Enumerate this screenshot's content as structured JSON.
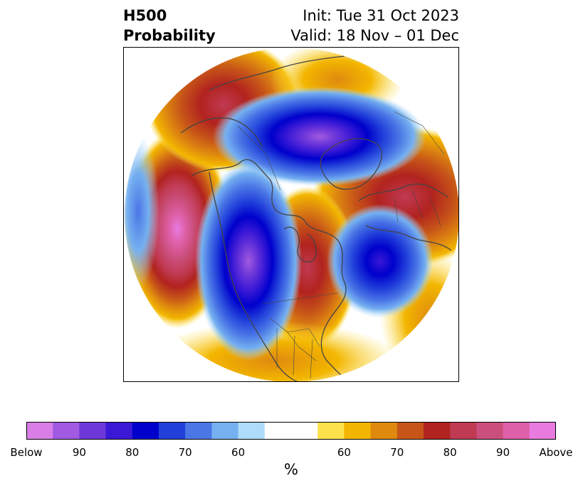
{
  "title": {
    "left_line1": "H500",
    "left_line2": "Probability",
    "init": "Init: Tue 31 Oct 2023",
    "valid": "Valid: 18 Nov – 01 Dec"
  },
  "map": {
    "projection": "north-polar-stereographic",
    "features": [
      "coastlines",
      "country-borders",
      "us-state-borders"
    ],
    "anomalies": [
      {
        "region": "Gulf of Alaska / NE Pacific",
        "category": "Above",
        "peak_percent": 95
      },
      {
        "region": "Western Canada / Alaska interior",
        "category": "Below",
        "peak_percent": 90
      },
      {
        "region": "Eastern Canada / Great Lakes",
        "category": "Above",
        "peak_percent": 85
      },
      {
        "region": "North Atlantic",
        "category": "Below",
        "peak_percent": 80
      },
      {
        "region": "Arctic Ocean / Siberia",
        "category": "Below",
        "peak_percent": 90
      },
      {
        "region": "Scandinavia / Western Russia",
        "category": "Above",
        "peak_percent": 85
      },
      {
        "region": "Kamchatka / NW Pacific",
        "category": "Above",
        "peak_percent": 85
      },
      {
        "region": "Southern US",
        "category": "Above",
        "peak_percent": 60
      }
    ]
  },
  "colorbar": {
    "units": "%",
    "below_colors": [
      "#d97ee6",
      "#a15ae1",
      "#6e37d9",
      "#3a19d6",
      "#0000cc",
      "#2140da",
      "#4a76e6",
      "#75b0f0",
      "#aedcfb"
    ],
    "neutral_color": "#ffffff",
    "above_colors": [
      "#fde14a",
      "#f3b600",
      "#df8a0f",
      "#c75518",
      "#b1231f",
      "#c03a52",
      "#cb4f7d",
      "#de60a8",
      "#e87be0"
    ],
    "tick_labels": [
      "Below",
      "90",
      "80",
      "70",
      "60",
      "60",
      "70",
      "80",
      "90",
      "Above"
    ]
  }
}
